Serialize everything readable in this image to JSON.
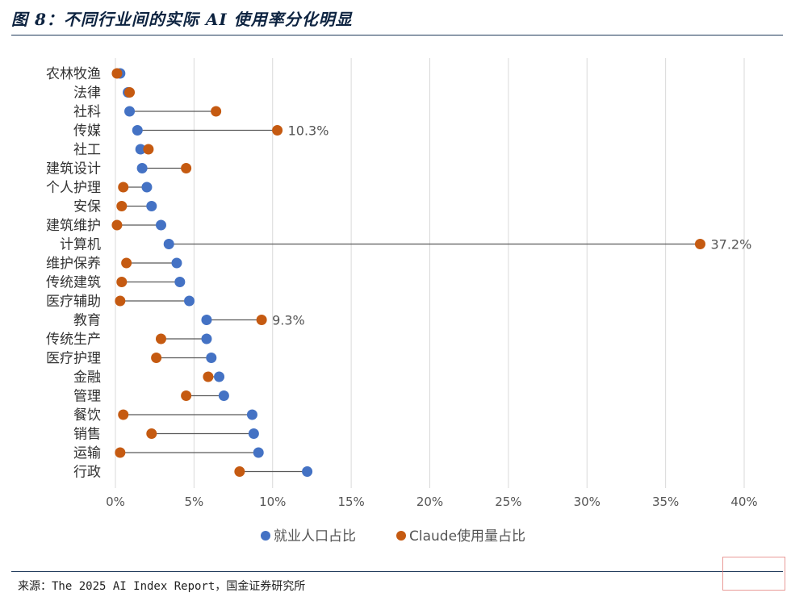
{
  "figure": {
    "title": "图 8：不同行业间的实际 AI 使用率分化明显",
    "source": "来源：The 2025 AI Index Report，国金证券研究所",
    "watermark": "",
    "colors": {
      "employment": "#4472c4",
      "claude": "#c55a11",
      "connector": "#595959",
      "grid": "#d9d9d9",
      "rule": "#1f3a5a"
    }
  },
  "chart_data": {
    "type": "scatter",
    "subtype": "dumbbell",
    "title": "",
    "xlabel": "",
    "ylabel": "",
    "xlim": [
      0,
      40
    ],
    "x_unit": "%",
    "x_ticks": [
      "0%",
      "5%",
      "10%",
      "15%",
      "20%",
      "25%",
      "30%",
      "35%",
      "40%"
    ],
    "grid": "vertical",
    "legend_position": "bottom",
    "categories": [
      "农林牧渔",
      "法律",
      "社科",
      "传媒",
      "社工",
      "建筑设计",
      "个人护理",
      "安保",
      "建筑维护",
      "计算机",
      "维护保养",
      "传统建筑",
      "医疗辅助",
      "教育",
      "传统生产",
      "医疗护理",
      "金融",
      "管理",
      "餐饮",
      "销售",
      "运输",
      "行政"
    ],
    "series": [
      {
        "name": "就业人口占比",
        "values": [
          0.3,
          0.8,
          0.9,
          1.4,
          1.6,
          1.7,
          2.0,
          2.3,
          2.9,
          3.4,
          3.9,
          4.1,
          4.7,
          5.8,
          5.8,
          6.1,
          6.6,
          6.9,
          8.7,
          8.8,
          9.1,
          12.2
        ]
      },
      {
        "name": "Claude使用量占比",
        "values": [
          0.1,
          0.9,
          6.4,
          10.3,
          2.1,
          4.5,
          0.5,
          0.4,
          0.1,
          37.2,
          0.7,
          0.4,
          0.3,
          9.3,
          2.9,
          2.6,
          5.9,
          4.5,
          0.5,
          2.3,
          0.3,
          7.9
        ]
      }
    ],
    "annotations": [
      {
        "category": "传媒",
        "text": "10.3%"
      },
      {
        "category": "计算机",
        "text": "37.2%"
      },
      {
        "category": "教育",
        "text": "9.3%"
      }
    ]
  }
}
